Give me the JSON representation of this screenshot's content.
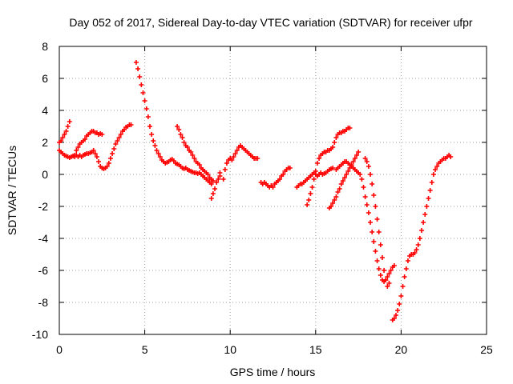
{
  "chart_data": {
    "type": "scatter",
    "title": "Day 052 of 2017, Sidereal Day-to-day VTEC variation (SDTVAR) for receiver ufpr",
    "xlabel": "GPS time / hours",
    "ylabel": "SDTVAR / TECUs",
    "xlim": [
      0,
      25
    ],
    "ylim": [
      -10,
      8
    ],
    "xticks": [
      0,
      5,
      10,
      15,
      20,
      25
    ],
    "yticks": [
      -10,
      -8,
      -6,
      -4,
      -2,
      0,
      2,
      4,
      6,
      8
    ],
    "grid": true,
    "marker": "+",
    "marker_color": "#ff0000",
    "series": [
      {
        "x": [
          0.0,
          0.1,
          0.2,
          0.3,
          0.4,
          0.5,
          0.6,
          0.7,
          0.8,
          0.9,
          1.0,
          1.1,
          1.2,
          1.3,
          1.4,
          1.5,
          1.6,
          1.7,
          1.8,
          1.9,
          2.0,
          2.1,
          2.2,
          2.3,
          2.4,
          2.5,
          2.6,
          2.7,
          2.8,
          2.9,
          3.0,
          3.1,
          3.2,
          3.3,
          3.4,
          3.5,
          3.6,
          3.7,
          3.8,
          3.9,
          4.0,
          4.1,
          4.2
        ],
        "y": [
          1.5,
          1.4,
          1.3,
          1.2,
          1.15,
          1.1,
          1.05,
          1.1,
          1.15,
          1.1,
          1.2,
          1.1,
          1.2,
          1.1,
          1.2,
          1.25,
          1.3,
          1.3,
          1.35,
          1.4,
          1.5,
          1.3,
          1.1,
          0.8,
          0.5,
          0.4,
          0.35,
          0.4,
          0.5,
          0.7,
          1.0,
          1.3,
          1.6,
          1.9,
          2.1,
          2.3,
          2.5,
          2.7,
          2.8,
          2.95,
          3.0,
          3.1,
          3.1
        ]
      },
      {
        "x": [
          0.0,
          0.1,
          0.2,
          0.3,
          0.4,
          0.5,
          0.6
        ],
        "y": [
          2.0,
          2.1,
          2.3,
          2.5,
          2.7,
          3.0,
          3.3
        ]
      },
      {
        "x": [
          0.9,
          1.0,
          1.1,
          1.2,
          1.3,
          1.4,
          1.5,
          1.6,
          1.7,
          1.8,
          1.9,
          2.0,
          2.1,
          2.2,
          2.3,
          2.4,
          2.5
        ],
        "y": [
          1.2,
          1.5,
          1.7,
          1.9,
          2.0,
          2.1,
          2.2,
          2.4,
          2.5,
          2.6,
          2.7,
          2.7,
          2.6,
          2.6,
          2.5,
          2.55,
          2.5
        ]
      },
      {
        "x": [
          4.5,
          4.6,
          4.7,
          4.8,
          4.9,
          5.0,
          5.1,
          5.2,
          5.3,
          5.4,
          5.5,
          5.6,
          5.7,
          5.8,
          5.9,
          6.0,
          6.1,
          6.2,
          6.3,
          6.4,
          6.5,
          6.6,
          6.7,
          6.8,
          6.9,
          7.0,
          7.1,
          7.2,
          7.3,
          7.4,
          7.5,
          7.6,
          7.7,
          7.8,
          7.9,
          8.0,
          8.1,
          8.2,
          8.3,
          8.4,
          8.5,
          8.6,
          8.7,
          8.8,
          8.9
        ],
        "y": [
          7.0,
          6.6,
          6.1,
          5.6,
          5.1,
          4.6,
          4.1,
          3.6,
          3.0,
          2.5,
          2.1,
          1.8,
          1.5,
          1.3,
          1.1,
          0.9,
          0.8,
          0.7,
          0.75,
          0.8,
          0.9,
          0.95,
          0.85,
          0.7,
          0.65,
          0.6,
          0.5,
          0.4,
          0.35,
          0.4,
          0.3,
          0.25,
          0.2,
          0.15,
          0.1,
          0.1,
          0.05,
          0.1,
          0.0,
          -0.1,
          -0.2,
          -0.3,
          -0.4,
          -0.5,
          -0.6
        ]
      },
      {
        "x": [
          6.9,
          7.0,
          7.1,
          7.2,
          7.3,
          7.4,
          7.5,
          7.6,
          7.7,
          7.8,
          7.9,
          8.0,
          8.1,
          8.2,
          8.3,
          8.4,
          8.5,
          8.6,
          8.7,
          8.8,
          8.9,
          9.0
        ],
        "y": [
          3.0,
          2.8,
          2.5,
          2.3,
          2.0,
          1.8,
          1.7,
          1.5,
          1.4,
          1.2,
          1.0,
          0.8,
          0.7,
          0.6,
          0.4,
          0.3,
          0.2,
          0.1,
          0.0,
          -0.2,
          -0.3,
          -0.4
        ]
      },
      {
        "x": [
          8.9,
          9.0,
          9.1,
          9.2,
          9.3,
          9.4
        ],
        "y": [
          -1.5,
          -1.2,
          -0.9,
          -0.5,
          -0.3,
          0.1
        ]
      },
      {
        "x": [
          9.4,
          9.6,
          9.7,
          9.8,
          9.9,
          10.0,
          10.1,
          10.2,
          10.3,
          10.4,
          10.5,
          10.6,
          10.7,
          10.8,
          10.9,
          11.0,
          11.1,
          11.2,
          11.3,
          11.4,
          11.5,
          11.6
        ],
        "y": [
          -0.1,
          -0.3,
          0.3,
          0.7,
          0.9,
          1.0,
          0.9,
          1.1,
          1.3,
          1.5,
          1.7,
          1.8,
          1.7,
          1.6,
          1.5,
          1.4,
          1.3,
          1.2,
          1.1,
          1.0,
          1.0,
          1.0
        ]
      },
      {
        "x": [
          11.8,
          11.9,
          12.0,
          12.1,
          12.2,
          12.3,
          12.4,
          12.5,
          12.6,
          12.7,
          12.8,
          12.9,
          13.0,
          13.1,
          13.2,
          13.3,
          13.4,
          13.5
        ],
        "y": [
          -0.5,
          -0.6,
          -0.5,
          -0.6,
          -0.7,
          -0.8,
          -0.7,
          -0.8,
          -0.6,
          -0.5,
          -0.4,
          -0.3,
          -0.1,
          0.0,
          0.2,
          0.3,
          0.4,
          0.4
        ]
      },
      {
        "x": [
          13.9,
          14.0,
          14.1,
          14.2,
          14.3,
          14.4,
          14.5,
          14.6,
          14.7,
          14.8,
          14.9,
          15.0,
          15.1,
          15.2,
          15.3,
          15.4,
          15.5,
          15.6,
          15.7,
          15.8,
          15.9,
          16.0
        ],
        "y": [
          -0.8,
          -0.7,
          -0.6,
          -0.6,
          -0.5,
          -0.4,
          -0.3,
          -0.2,
          -0.1,
          0.0,
          0.1,
          0.0,
          -0.1,
          0.0,
          0.1,
          0.0,
          0.05,
          0.1,
          0.2,
          0.3,
          0.35,
          0.4
        ]
      },
      {
        "x": [
          14.5,
          14.6,
          14.7,
          14.8,
          14.9,
          15.0,
          15.1,
          15.2,
          15.3,
          15.4,
          15.5,
          15.6,
          15.7,
          15.8,
          15.9,
          16.0,
          16.1,
          16.2,
          16.3,
          16.4,
          16.5,
          16.6,
          16.7,
          16.8,
          16.9,
          17.0
        ],
        "y": [
          -1.9,
          -1.6,
          -1.2,
          -0.8,
          -0.3,
          0.2,
          0.7,
          1.0,
          1.2,
          1.3,
          1.4,
          1.4,
          1.5,
          1.5,
          1.6,
          1.7,
          2.0,
          2.3,
          2.5,
          2.6,
          2.6,
          2.7,
          2.7,
          2.8,
          2.9,
          2.9
        ]
      },
      {
        "x": [
          15.8,
          15.9,
          16.0,
          16.1,
          16.2,
          16.3,
          16.4,
          16.5,
          16.6,
          16.7,
          16.8,
          16.9,
          17.0,
          17.1,
          17.2,
          17.3,
          17.4,
          17.5
        ],
        "y": [
          -2.1,
          -2.0,
          -1.8,
          -1.6,
          -1.4,
          -1.1,
          -0.9,
          -0.6,
          -0.4,
          -0.2,
          0.0,
          0.2,
          0.4,
          0.6,
          0.8,
          1.0,
          1.2,
          1.4
        ]
      },
      {
        "x": [
          16.2,
          16.3,
          16.4,
          16.5,
          16.6,
          16.7,
          16.8,
          16.9,
          17.0,
          17.1,
          17.2,
          17.3,
          17.4,
          17.5,
          17.6,
          17.7,
          17.8,
          17.9,
          18.0,
          18.1,
          18.2,
          18.3,
          18.4,
          18.5,
          18.6,
          18.7,
          18.8,
          18.9,
          19.0,
          19.1,
          19.2,
          19.3,
          19.4,
          19.5,
          19.6
        ],
        "y": [
          0.3,
          0.4,
          0.5,
          0.6,
          0.7,
          0.8,
          0.8,
          0.7,
          0.6,
          0.5,
          0.4,
          0.3,
          0.2,
          0.1,
          0.0,
          -0.3,
          -0.8,
          -1.4,
          -1.9,
          -2.4,
          -3.0,
          -3.6,
          -4.2,
          -4.8,
          -5.4,
          -5.9,
          -6.3,
          -6.6,
          -6.7,
          -6.6,
          -6.4,
          -6.2,
          -6.0,
          -5.8,
          -5.7
        ]
      },
      {
        "x": [
          17.9,
          18.0,
          18.1,
          18.2,
          18.3,
          18.4,
          18.5,
          18.6,
          18.7,
          18.8,
          18.9,
          19.0,
          19.1,
          19.2,
          19.3
        ],
        "y": [
          1.0,
          0.8,
          0.5,
          0.0,
          -0.6,
          -1.3,
          -2.0,
          -2.8,
          -3.6,
          -4.4,
          -5.2,
          -6.0,
          -6.6,
          -7.0,
          -6.8
        ]
      },
      {
        "x": [
          19.5,
          19.6,
          19.7,
          19.8,
          19.9,
          20.0,
          20.1,
          20.2,
          20.3,
          20.4,
          20.5,
          20.6,
          20.7,
          20.8,
          20.9,
          21.0,
          21.1,
          21.2,
          21.3,
          21.4,
          21.5,
          21.6,
          21.7,
          21.8,
          21.9,
          22.0,
          22.1,
          22.2,
          22.3,
          22.4,
          22.5,
          22.6,
          22.7,
          22.8,
          22.9
        ],
        "y": [
          -9.1,
          -9.0,
          -8.8,
          -8.5,
          -8.1,
          -7.6,
          -7.0,
          -6.4,
          -5.9,
          -5.4,
          -5.1,
          -5.0,
          -5.0,
          -4.9,
          -4.7,
          -4.4,
          -4.0,
          -3.5,
          -3.0,
          -2.5,
          -2.0,
          -1.5,
          -1.0,
          -0.5,
          0.0,
          0.3,
          0.5,
          0.7,
          0.8,
          0.9,
          1.0,
          1.0,
          1.1,
          1.2,
          1.1
        ]
      }
    ]
  }
}
